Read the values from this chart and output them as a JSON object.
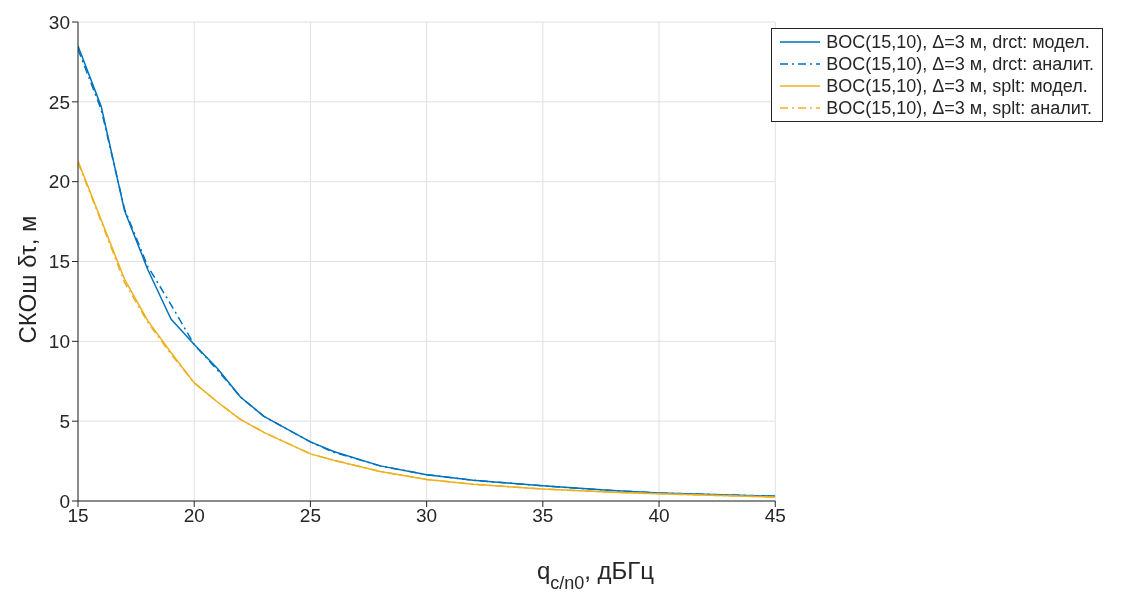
{
  "chart_data": {
    "type": "line",
    "xlabel": "q$_{c/n0}$, дБГц",
    "ylabel": "СКОш δτ, м",
    "x": [
      15,
      16,
      17,
      18,
      19,
      20,
      21,
      22,
      23,
      25,
      26,
      28,
      30,
      32,
      35,
      38,
      40,
      45
    ],
    "series": [
      {
        "name": "BOC(15,10), Δ=3 м, drct: модел.",
        "color": "#0072bd",
        "line_style": "solid",
        "values": [
          28.5,
          24.7,
          18.2,
          14.5,
          11.4,
          9.8,
          8.3,
          6.5,
          5.3,
          3.7,
          3.1,
          2.2,
          1.65,
          1.3,
          0.95,
          0.65,
          0.5,
          0.3
        ]
      },
      {
        "name": "BOC(15,10), Δ=3 м, drct: аналит.",
        "color": "#0072bd",
        "line_style": "dashed",
        "values": [
          28.3,
          24.5,
          18.3,
          14.7,
          12.3,
          9.8,
          8.2,
          6.5,
          5.3,
          3.7,
          3.05,
          2.2,
          1.65,
          1.3,
          0.95,
          0.65,
          0.5,
          0.3
        ]
      },
      {
        "name": "BOC(15,10), Δ=3 м, splt: модел.",
        "color": "#edb120",
        "line_style": "solid",
        "values": [
          21.3,
          17.6,
          13.9,
          11.3,
          9.3,
          7.4,
          6.2,
          5.1,
          4.3,
          2.95,
          2.55,
          1.85,
          1.35,
          1.05,
          0.75,
          0.55,
          0.45,
          0.25
        ]
      },
      {
        "name": "BOC(15,10), Δ=3 м, splt: аналит.",
        "color": "#edb120",
        "line_style": "dashed",
        "values": [
          21.2,
          17.5,
          13.7,
          11.2,
          9.2,
          7.4,
          6.2,
          5.1,
          4.3,
          2.95,
          2.55,
          1.85,
          1.35,
          1.05,
          0.75,
          0.55,
          0.45,
          0.25
        ]
      }
    ],
    "xlim": [
      15,
      45
    ],
    "xticks": [
      15,
      20,
      25,
      30,
      35,
      40,
      45
    ],
    "ylim": [
      0,
      30
    ],
    "yticks": [
      0,
      5,
      10,
      15,
      20,
      25,
      30
    ],
    "grid": true,
    "legend": "top right",
    "marker": "none"
  }
}
